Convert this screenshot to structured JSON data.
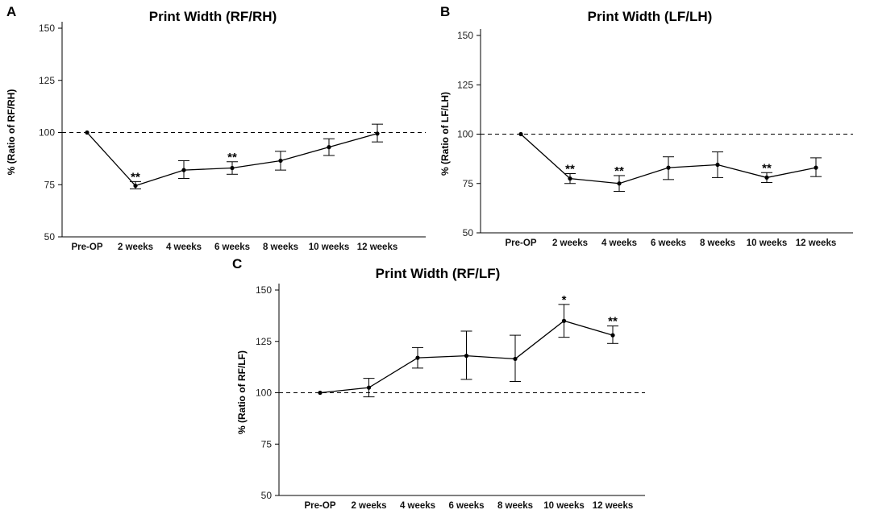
{
  "chart_data": [
    {
      "panel": "A",
      "type": "line",
      "title": "Print Width (RF/RH)",
      "ylabel": "% (Ratio of RF/RH)",
      "xlabel": "",
      "categories": [
        "Pre-OP",
        "2 weeks",
        "4 weeks",
        "6 weeks",
        "8 weeks",
        "10 weeks",
        "12 weeks"
      ],
      "yticks": [
        50,
        75,
        100,
        125,
        150
      ],
      "ylim": [
        50,
        155
      ],
      "reference_line": 100,
      "series": [
        {
          "name": "RF/RH",
          "values": [
            100,
            74.5,
            82,
            83,
            86.5,
            93,
            99.5
          ],
          "err_low": [
            100,
            73,
            78,
            80,
            82,
            89,
            95.5
          ],
          "err_high": [
            100,
            76.5,
            86.5,
            86,
            91,
            97,
            104
          ]
        }
      ],
      "annotations": [
        {
          "category": "2 weeks",
          "text": "**"
        },
        {
          "category": "6 weeks",
          "text": "**"
        }
      ]
    },
    {
      "panel": "B",
      "type": "line",
      "title": "Print Width (LF/LH)",
      "ylabel": "% (Ratio of LF/LH)",
      "xlabel": "",
      "categories": [
        "Pre-OP",
        "2 weeks",
        "4 weeks",
        "6 weeks",
        "8 weeks",
        "10 weeks",
        "12 weeks"
      ],
      "yticks": [
        50,
        75,
        100,
        125,
        150
      ],
      "ylim": [
        50,
        155
      ],
      "reference_line": 100,
      "series": [
        {
          "name": "LF/LH",
          "values": [
            100,
            77.5,
            75,
            83,
            84.5,
            78,
            83
          ],
          "err_low": [
            100,
            75,
            71,
            77,
            78,
            75.5,
            78.5
          ],
          "err_high": [
            100,
            80,
            79,
            88.5,
            91,
            80.5,
            88
          ]
        }
      ],
      "annotations": [
        {
          "category": "2 weeks",
          "text": "**"
        },
        {
          "category": "4 weeks",
          "text": "**"
        },
        {
          "category": "10 weeks",
          "text": "**"
        }
      ]
    },
    {
      "panel": "C",
      "type": "line",
      "title": "Print Width (RF/LF)",
      "ylabel": "% (Ratio of RF/LF)",
      "xlabel": "",
      "categories": [
        "Pre-OP",
        "2 weeks",
        "4 weeks",
        "6 weeks",
        "8 weeks",
        "10 weeks",
        "12 weeks"
      ],
      "yticks": [
        50,
        75,
        100,
        125,
        150
      ],
      "ylim": [
        50,
        155
      ],
      "reference_line": 100,
      "series": [
        {
          "name": "RF/LF",
          "values": [
            100,
            102.5,
            117,
            118,
            116.5,
            135,
            128
          ],
          "err_low": [
            100,
            98,
            112,
            106.5,
            105.5,
            127,
            124
          ],
          "err_high": [
            100,
            107,
            122,
            130,
            128,
            143,
            132.5
          ]
        }
      ],
      "annotations": [
        {
          "category": "10 weeks",
          "text": "*"
        },
        {
          "category": "12 weeks",
          "text": "**"
        }
      ]
    }
  ]
}
